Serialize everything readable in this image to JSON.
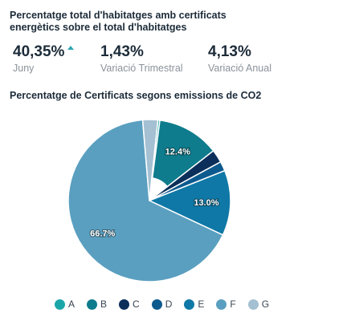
{
  "header": {
    "title": "Percentatge total d'habitatges amb certificats energètics sobre el total d'habitatges"
  },
  "kpis": [
    {
      "value": "40,35%",
      "label": "Juny",
      "trend": "up"
    },
    {
      "value": "1,43%",
      "label": "Variació Trimestral"
    },
    {
      "value": "4,13%",
      "label": "Variació Anual"
    }
  ],
  "colors": {
    "trend_up": "#2aa7b0"
  },
  "chart_data": {
    "type": "pie",
    "donut": true,
    "title": "Percentatge de Certificats segons emissions de CO2",
    "legend_position": "bottom",
    "slices": [
      {
        "name": "A",
        "value": 0.4,
        "color": "#1aa6a8",
        "label": ""
      },
      {
        "name": "B",
        "value": 12.4,
        "color": "#0e7c8c",
        "label": "12.4%"
      },
      {
        "name": "C",
        "value": 2.6,
        "color": "#0b2f5a",
        "label": ""
      },
      {
        "name": "D",
        "value": 1.9,
        "color": "#0d5a8f",
        "label": ""
      },
      {
        "name": "E",
        "value": 13.0,
        "color": "#0f78a6",
        "label": "13.0%"
      },
      {
        "name": "F",
        "value": 66.7,
        "color": "#5a9fc0",
        "label": "66.7%"
      },
      {
        "name": "G",
        "value": 3.0,
        "color": "#a4c0d2",
        "label": ""
      }
    ]
  }
}
